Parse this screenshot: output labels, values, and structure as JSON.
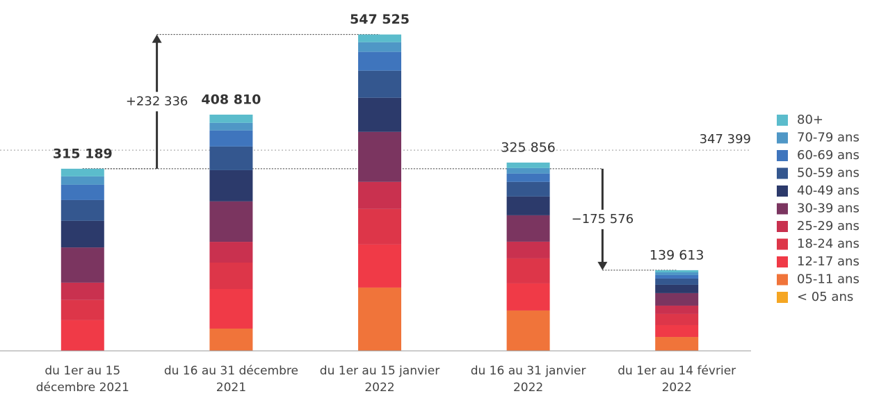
{
  "chart_data": {
    "type": "stacked_bar",
    "categories": [
      [
        "du 1er au 15",
        "décembre 2021"
      ],
      [
        "du 16 au 31 décembre",
        "2021"
      ],
      [
        "du 1er au 15 janvier",
        "2022"
      ],
      [
        "du 16 au 31 janvier",
        "2022"
      ],
      [
        "du 1er au 14 février",
        "2022"
      ]
    ],
    "series": [
      {
        "name": "< 05 ans",
        "color": "#f5a623",
        "values": [
          0,
          0,
          0,
          0,
          0
        ]
      },
      {
        "name": "05-11 ans",
        "color": "#f0743a",
        "values": [
          0,
          38500,
          109500,
          69800,
          24000
        ]
      },
      {
        "name": "12-17 ans",
        "color": "#f03a47",
        "values": [
          53000,
          68500,
          74600,
          46900,
          20500
        ]
      },
      {
        "name": "18-24 ans",
        "color": "#dd3649",
        "values": [
          35000,
          45700,
          61400,
          43300,
          19300
        ]
      },
      {
        "name": "25-29 ans",
        "color": "#c9314f",
        "values": [
          30000,
          36000,
          46900,
          28900,
          14400
        ]
      },
      {
        "name": "30-39 ans",
        "color": "#7b3560",
        "values": [
          61000,
          70000,
          86600,
          45700,
          21700
        ]
      },
      {
        "name": "40-49 ans",
        "color": "#2c3a6b",
        "values": [
          46000,
          54000,
          59000,
          32500,
          14400
        ]
      },
      {
        "name": "50-59 ans",
        "color": "#34578f",
        "values": [
          36000,
          41000,
          46900,
          25300,
          10800
        ]
      },
      {
        "name": "60-69 ans",
        "color": "#3f75bd",
        "values": [
          26500,
          27700,
          32500,
          14400,
          6000
        ]
      },
      {
        "name": "70-79 ans",
        "color": "#4f97c6",
        "values": [
          14500,
          13200,
          16800,
          9600,
          4800
        ]
      },
      {
        "name": "80+",
        "color": "#5bbccc",
        "values": [
          13189,
          14210,
          13325,
          9456,
          3713
        ]
      }
    ],
    "totals": [
      315189,
      408810,
      547525,
      325856,
      139613
    ],
    "total_labels": [
      "315 189",
      "408 810",
      "547 525",
      "325 856",
      "139 613"
    ],
    "reference_line": {
      "value": 347399,
      "label": "347 399"
    },
    "annotations": [
      {
        "value": 232336,
        "label": "+232 336"
      },
      {
        "value": -175576,
        "label": "−175 576"
      }
    ],
    "ylim": [
      0,
      600000
    ]
  }
}
